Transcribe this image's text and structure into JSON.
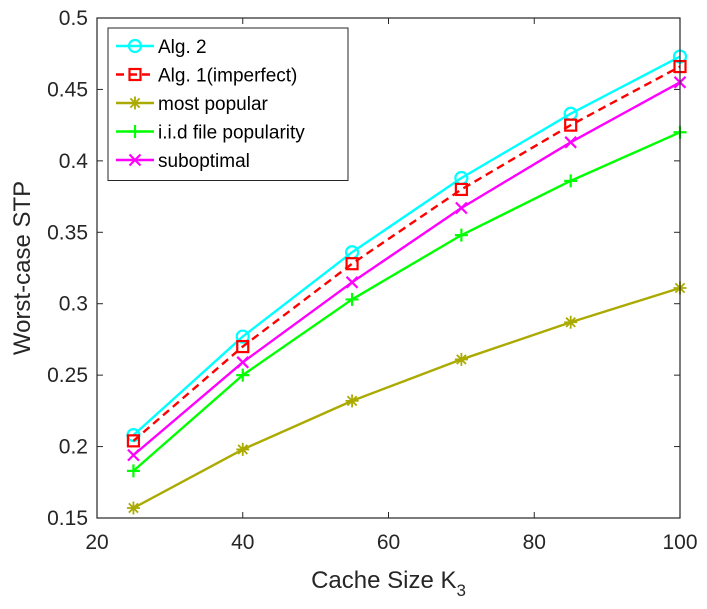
{
  "chart_data": {
    "type": "line",
    "title": "",
    "xlabel": "Cache Size K",
    "xlabel_subscript": "3",
    "ylabel": "Worst-case STP",
    "xlim": [
      20,
      100
    ],
    "ylim": [
      0.15,
      0.5
    ],
    "xticks": [
      20,
      40,
      60,
      80,
      100
    ],
    "xtick_labels": [
      "20",
      "40",
      "60",
      "80",
      "100"
    ],
    "yticks": [
      0.15,
      0.2,
      0.25,
      0.3,
      0.35,
      0.4,
      0.45,
      0.5
    ],
    "ytick_labels": [
      "0.15",
      "0.2",
      "0.25",
      "0.3",
      "0.35",
      "0.4",
      "0.45",
      "0.5"
    ],
    "grid": false,
    "legend_position": "top-left",
    "x": [
      25,
      40,
      55,
      70,
      85,
      100
    ],
    "series": [
      {
        "name": "Alg. 2",
        "color": "#00ffff",
        "marker": "circle",
        "dash": "solid",
        "values": [
          0.208,
          0.277,
          0.336,
          0.388,
          0.433,
          0.473
        ]
      },
      {
        "name": "Alg. 1(imperfect)",
        "color": "#ff0000",
        "marker": "square",
        "dash": "dashed",
        "values": [
          0.204,
          0.27,
          0.328,
          0.38,
          0.425,
          0.466
        ]
      },
      {
        "name": "most popular",
        "color": "#aaaa00",
        "marker": "asterisk",
        "dash": "solid",
        "values": [
          0.157,
          0.198,
          0.232,
          0.261,
          0.287,
          0.311
        ]
      },
      {
        "name": "i.i.d file popularity",
        "color": "#00ff00",
        "marker": "plus",
        "dash": "solid",
        "values": [
          0.183,
          0.25,
          0.303,
          0.348,
          0.386,
          0.42
        ]
      },
      {
        "name": "suboptimal",
        "color": "#ff00ff",
        "marker": "x",
        "dash": "solid",
        "values": [
          0.194,
          0.259,
          0.315,
          0.367,
          0.413,
          0.455
        ]
      }
    ]
  }
}
